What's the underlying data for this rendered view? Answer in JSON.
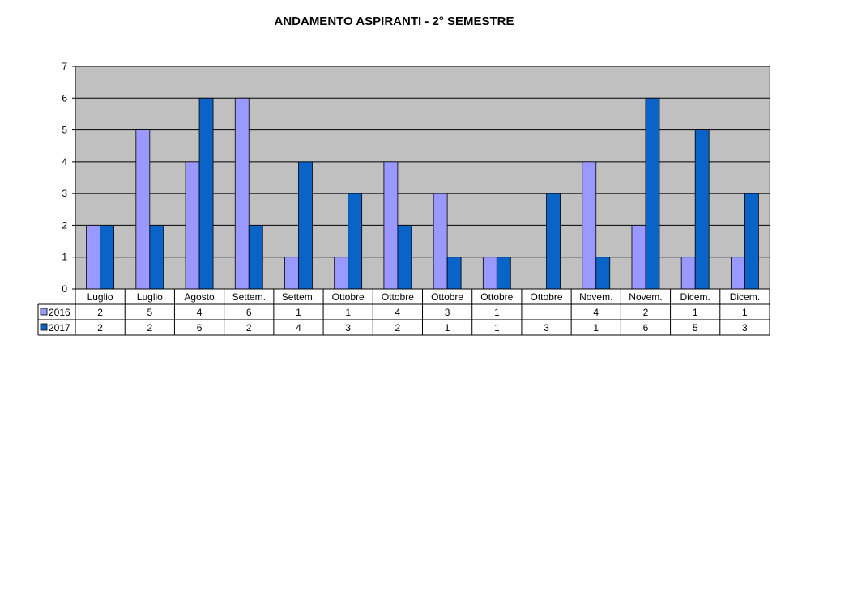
{
  "chart_data": {
    "type": "bar",
    "title": "ANDAMENTO ASPIRANTI  -  2° SEMESTRE",
    "categories": [
      "Luglio",
      "Luglio",
      "Agosto",
      "Settem.",
      "Settem.",
      "Ottobre",
      "Ottobre",
      "Ottobre",
      "Ottobre",
      "Ottobre",
      "Novem.",
      "Novem.",
      "Dicem.",
      "Dicem."
    ],
    "series": [
      {
        "name": "2016",
        "color": "#9999ff",
        "values": [
          2,
          5,
          4,
          6,
          1,
          1,
          4,
          3,
          1,
          null,
          4,
          2,
          1,
          1
        ]
      },
      {
        "name": "2017",
        "color": "#0a64c8",
        "values": [
          2,
          2,
          6,
          2,
          4,
          3,
          2,
          1,
          1,
          3,
          1,
          6,
          5,
          3
        ]
      }
    ],
    "ylim": [
      0,
      7
    ],
    "yticks": [
      0,
      1,
      2,
      3,
      4,
      5,
      6,
      7
    ],
    "grid": true,
    "plot_background": "#c0c0c0",
    "legend": "data table below the chart"
  }
}
